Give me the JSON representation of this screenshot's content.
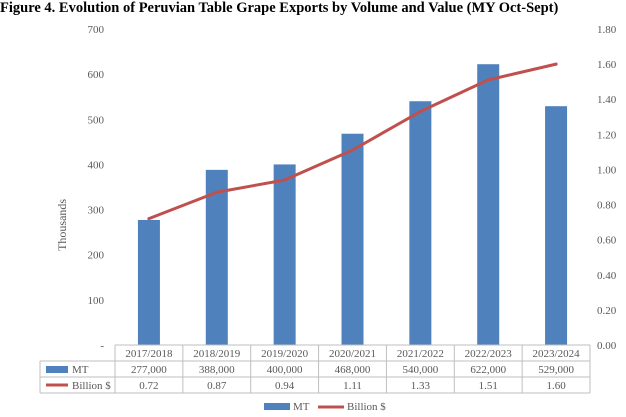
{
  "title": "Figure 4. Evolution of Peruvian Table Grape Exports by Volume and Value (MY Oct-Sept)",
  "chart_data": {
    "type": "bar",
    "title": "Figure 4. Evolution of Peruvian Table Grape Exports by Volume and Value (MY Oct-Sept)",
    "categories": [
      "2017/2018",
      "2018/2019",
      "2019/2020",
      "2020/2021",
      "2021/2022",
      "2022/2023",
      "2023/2024"
    ],
    "ylabel": "Thousands",
    "ylim": [
      0,
      700
    ],
    "y_ticks": [
      "-",
      "100",
      "200",
      "300",
      "400",
      "500",
      "600",
      "700"
    ],
    "y2lim": [
      0,
      1.8
    ],
    "y2_ticks": [
      "0.00",
      "0.20",
      "0.40",
      "0.60",
      "0.80",
      "1.00",
      "1.20",
      "1.40",
      "1.60",
      "1.80"
    ],
    "series": [
      {
        "name": "MT",
        "type": "bar",
        "axis": "left",
        "color": "#4f81bd",
        "values": [
          277,
          388,
          400,
          468,
          540,
          622,
          529
        ],
        "labels": [
          "277,000",
          "388,000",
          "400,000",
          "468,000",
          "540,000",
          "622,000",
          "529,000"
        ]
      },
      {
        "name": "Billion $",
        "type": "line",
        "axis": "right",
        "color": "#c0504d",
        "values": [
          0.72,
          0.87,
          0.94,
          1.11,
          1.33,
          1.51,
          1.6
        ],
        "labels": [
          "0.72",
          "0.87",
          "0.94",
          "1.11",
          "1.33",
          "1.51",
          "1.60"
        ]
      }
    ],
    "legend": [
      "MT",
      "Billion $"
    ],
    "legend_position": "bottom",
    "grid": false
  }
}
